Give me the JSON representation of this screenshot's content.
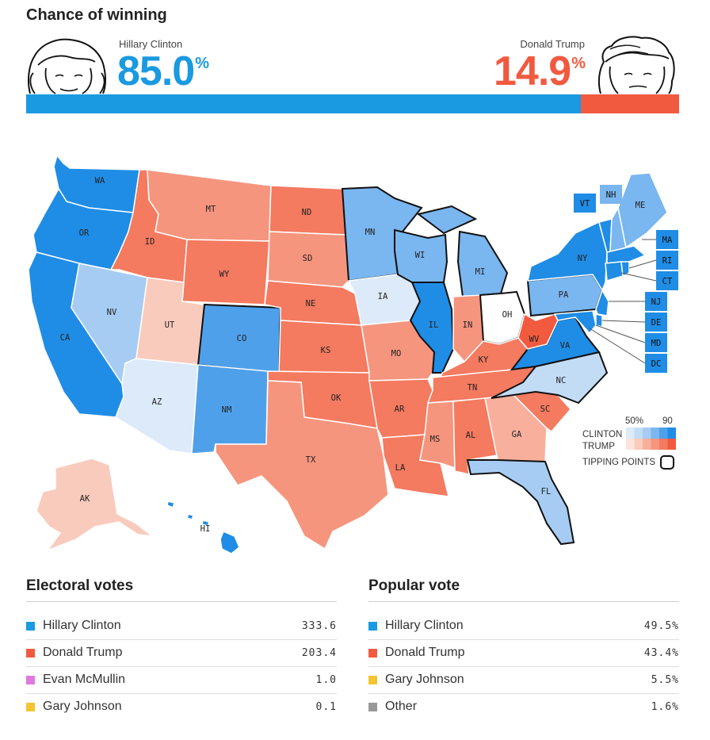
{
  "header": {
    "title": "Chance of winning",
    "clinton": {
      "name": "Hillary Clinton",
      "pct_num": "85.0",
      "pct_sign": "%",
      "probability": 85.0,
      "color": "#1a9ae0"
    },
    "trump": {
      "name": "Donald Trump",
      "pct_num": "14.9",
      "pct_sign": "%",
      "probability": 14.9,
      "color": "#f25a3f"
    }
  },
  "map": {
    "legend": {
      "scale_low": "50%",
      "scale_high": "90",
      "clinton_label": "CLINTON",
      "trump_label": "TRUMP",
      "tipping_label": "TIPPING POINTS",
      "clinton_colors": [
        "#dceafa",
        "#c3dcf6",
        "#a6ccf3",
        "#7ab6ef",
        "#4fa0ea",
        "#1f8de6"
      ],
      "trump_colors": [
        "#fbe3dc",
        "#f9cbbd",
        "#f8b09d",
        "#f6957e",
        "#f47a60",
        "#f25a3f"
      ]
    },
    "states": {
      "WA": "WA",
      "OR": "OR",
      "CA": "CA",
      "NV": "NV",
      "ID": "ID",
      "MT": "MT",
      "WY": "WY",
      "UT": "UT",
      "AZ": "AZ",
      "CO": "CO",
      "NM": "NM",
      "ND": "ND",
      "SD": "SD",
      "NE": "NE",
      "KS": "KS",
      "OK": "OK",
      "TX": "TX",
      "MN": "MN",
      "IA": "IA",
      "MO": "MO",
      "AR": "AR",
      "LA": "LA",
      "WI": "WI",
      "IL": "IL",
      "MI": "MI",
      "IN": "IN",
      "OH": "OH",
      "KY": "KY",
      "TN": "TN",
      "MS": "MS",
      "AL": "AL",
      "GA": "GA",
      "FL": "FL",
      "SC": "SC",
      "NC": "NC",
      "VA": "VA",
      "WV": "WV",
      "PA": "PA",
      "NY": "NY",
      "ME": "ME",
      "VT": "VT",
      "NH": "NH",
      "MA": "MA",
      "RI": "RI",
      "CT": "CT",
      "NJ": "NJ",
      "DE": "DE",
      "MD": "MD",
      "DC": "DC",
      "AK": "AK",
      "HI": "HI"
    }
  },
  "electoral": {
    "title": "Electoral votes",
    "rows": [
      {
        "name": "Hillary Clinton",
        "value": "333.6",
        "color": "#1a9ae0"
      },
      {
        "name": "Donald Trump",
        "value": "203.4",
        "color": "#f25a3f"
      },
      {
        "name": "Evan McMullin",
        "value": "1.0",
        "color": "#e07ae0"
      },
      {
        "name": "Gary Johnson",
        "value": "0.1",
        "color": "#f2c632"
      }
    ]
  },
  "popular": {
    "title": "Popular vote",
    "rows": [
      {
        "name": "Hillary Clinton",
        "value": "49.5%",
        "color": "#1a9ae0"
      },
      {
        "name": "Donald Trump",
        "value": "43.4%",
        "color": "#f25a3f"
      },
      {
        "name": "Gary Johnson",
        "value": "5.5%",
        "color": "#f2c632"
      },
      {
        "name": "Other",
        "value": "1.6%",
        "color": "#999999"
      }
    ]
  }
}
